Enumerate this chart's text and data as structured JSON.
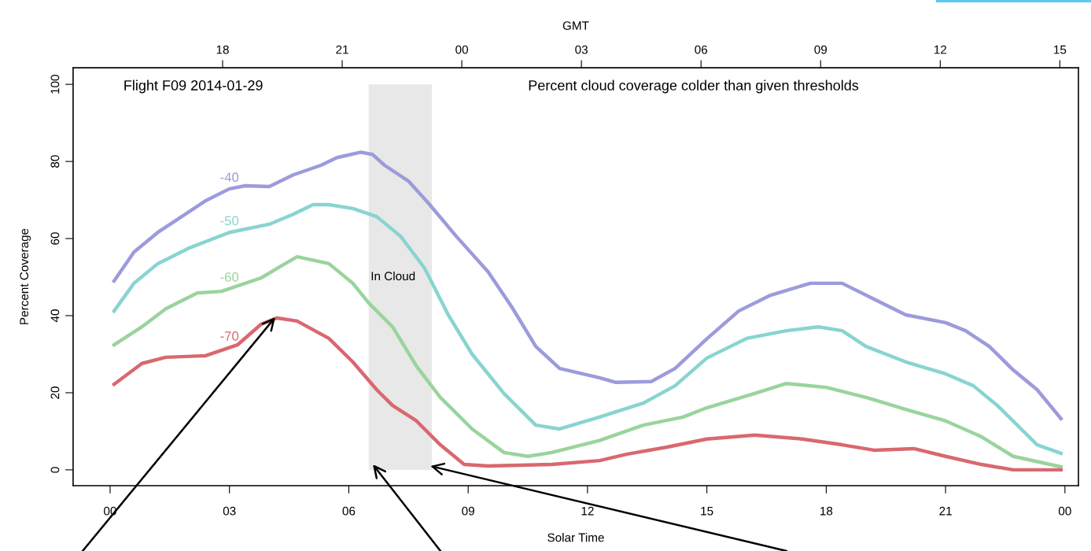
{
  "chart_data": {
    "type": "line",
    "title": "Percent cloud coverage colder than given thresholds",
    "subtitle": "Flight F09 2014-01-29",
    "xlabel": "Solar Time",
    "x2label": "GMT",
    "ylabel": "Percent Coverage",
    "xlim": [
      -0.93,
      24.34
    ],
    "xticks": [
      {
        "value": 0,
        "label": "00"
      },
      {
        "value": 3,
        "label": "03"
      },
      {
        "value": 6,
        "label": "06"
      },
      {
        "value": 9,
        "label": "09"
      },
      {
        "value": 12,
        "label": "12"
      },
      {
        "value": 15,
        "label": "15"
      },
      {
        "value": 18,
        "label": "18"
      },
      {
        "value": 21,
        "label": "21"
      },
      {
        "value": 24,
        "label": "00"
      }
    ],
    "x2lim": [
      "2014-01-28T14:15",
      "2014-01-29T15:28"
    ],
    "x2ticks": [
      {
        "value": "2014-01-28T18:00",
        "label": "18"
      },
      {
        "value": "2014-01-28T21:00",
        "label": "21"
      },
      {
        "value": "2014-01-29T00:00",
        "label": "00"
      },
      {
        "value": "2014-01-29T03:00",
        "label": "03"
      },
      {
        "value": "2014-01-29T06:00",
        "label": "06"
      },
      {
        "value": "2014-01-29T09:00",
        "label": "09"
      },
      {
        "value": "2014-01-29T12:00",
        "label": "12"
      },
      {
        "value": "2014-01-29T15:00",
        "label": "15"
      }
    ],
    "ylim": [
      -4.1,
      104.3
    ],
    "yticks": [
      0,
      20,
      40,
      60,
      80,
      100
    ],
    "grid": false,
    "legend": false,
    "line_style": "solid",
    "marker": "none",
    "bands": [
      {
        "axis": "x",
        "from": 6.5,
        "to": 8.09,
        "label": "In Cloud",
        "color": "#e8e8e8"
      }
    ],
    "series": [
      {
        "name": "-40",
        "color": "#9b9bdc",
        "x": [
          0.1,
          0.6,
          1.2,
          1.8,
          2.4,
          3.0,
          3.4,
          4.0,
          4.6,
          5.3,
          5.7,
          6.3,
          6.6,
          6.9,
          7.5,
          8.0,
          8.7,
          9.5,
          10.1,
          10.7,
          11.3,
          12.3,
          12.7,
          13.6,
          14.2,
          15.0,
          15.8,
          16.6,
          17.6,
          18.4,
          19.2,
          20.0,
          21.0,
          21.5,
          22.1,
          22.7,
          23.3,
          23.9
        ],
        "values": [
          49,
          56.5,
          61.6,
          65.7,
          69.8,
          72.9,
          73.7,
          73.5,
          76.5,
          79,
          81,
          82.4,
          81.8,
          79,
          74.9,
          69.2,
          60.6,
          51.4,
          42.2,
          32,
          26.3,
          23.9,
          22.7,
          22.9,
          26.3,
          34,
          41.2,
          45.3,
          48.4,
          48.4,
          44.3,
          40.2,
          38.2,
          36.1,
          32,
          25.9,
          20.8,
          13.3
        ]
      },
      {
        "name": "-50",
        "color": "#88d4d0",
        "x": [
          0.1,
          0.6,
          1.2,
          2.0,
          3.0,
          4.0,
          4.6,
          5.1,
          5.5,
          6.1,
          6.7,
          7.3,
          7.9,
          8.5,
          9.1,
          9.9,
          10.7,
          11.3,
          12.3,
          13.4,
          14.2,
          15.0,
          16.0,
          17.0,
          17.8,
          18.4,
          19.0,
          20.0,
          21.0,
          21.7,
          22.3,
          22.9,
          23.3,
          23.9
        ],
        "values": [
          41.2,
          48.4,
          53.5,
          57.6,
          61.6,
          63.7,
          66.3,
          68.8,
          68.8,
          67.8,
          65.7,
          60.6,
          52.4,
          40.2,
          30,
          19.8,
          11.6,
          10.6,
          13.7,
          17.3,
          21.8,
          29,
          34.1,
          36.1,
          37.1,
          36.1,
          32,
          28,
          24.9,
          21.8,
          16.7,
          10.6,
          6.5,
          4.3
        ]
      },
      {
        "name": "-60",
        "color": "#99d49c",
        "x": [
          0.1,
          0.8,
          1.4,
          2.2,
          2.8,
          3.8,
          4.3,
          4.7,
          5.5,
          6.1,
          6.5,
          7.1,
          7.7,
          8.3,
          9.1,
          9.9,
          10.5,
          11.1,
          12.3,
          13.4,
          14.4,
          15.0,
          16.2,
          17.0,
          18.0,
          19.0,
          20.0,
          21.0,
          21.9,
          22.7,
          23.9
        ],
        "values": [
          32.4,
          37.1,
          41.8,
          45.9,
          46.3,
          49.8,
          52.9,
          55.3,
          53.5,
          48.4,
          43.3,
          37.1,
          26.9,
          18.8,
          10.6,
          4.5,
          3.5,
          4.5,
          7.6,
          11.6,
          13.7,
          16.1,
          19.8,
          22.4,
          21.4,
          18.8,
          15.7,
          12.7,
          8.6,
          3.5,
          0.8
        ]
      },
      {
        "name": "-70",
        "color": "#d9686f",
        "x": [
          0.1,
          0.8,
          1.4,
          2.4,
          3.2,
          3.8,
          4.2,
          4.7,
          5.5,
          6.1,
          6.7,
          7.1,
          7.7,
          8.3,
          8.9,
          9.5,
          11.1,
          12.3,
          13.0,
          14.0,
          15.0,
          16.2,
          17.4,
          18.4,
          19.2,
          20.2,
          21.0,
          21.9,
          22.7,
          23.9
        ],
        "values": [
          22.2,
          27.6,
          29.2,
          29.6,
          32.4,
          37.8,
          39.4,
          38.6,
          34.1,
          28,
          20.8,
          16.7,
          12.7,
          6.5,
          1.4,
          1,
          1.4,
          2.4,
          4.1,
          5.9,
          8,
          9,
          8,
          6.5,
          5.1,
          5.5,
          3.5,
          1.4,
          0,
          0
        ]
      }
    ]
  }
}
